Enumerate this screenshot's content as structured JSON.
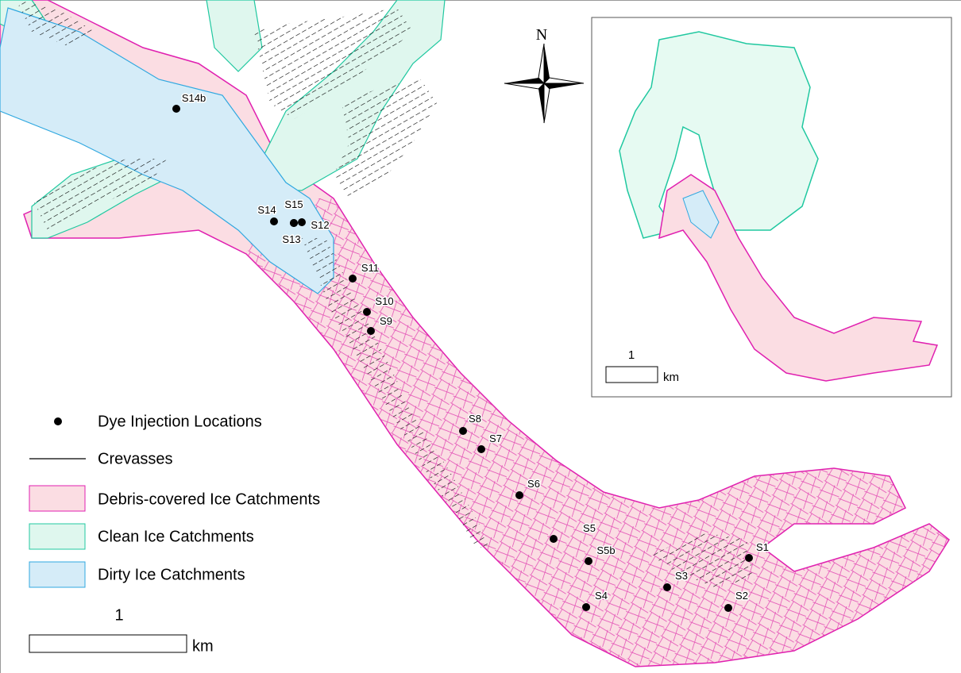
{
  "north_label": "N",
  "sites": [
    {
      "label": "S14b"
    },
    {
      "label": "S14"
    },
    {
      "label": "S15"
    },
    {
      "label": "S12"
    },
    {
      "label": "S13"
    },
    {
      "label": "S11"
    },
    {
      "label": "S10"
    },
    {
      "label": "S9"
    },
    {
      "label": "S8"
    },
    {
      "label": "S7"
    },
    {
      "label": "S6"
    },
    {
      "label": "S5"
    },
    {
      "label": "S5b"
    },
    {
      "label": "S4"
    },
    {
      "label": "S3"
    },
    {
      "label": "S2"
    },
    {
      "label": "S1"
    }
  ],
  "legend": [
    {
      "label": "Dye Injection Locations"
    },
    {
      "label": "Crevasses"
    },
    {
      "label": "Debris-covered Ice Catchments"
    },
    {
      "label": "Clean Ice Catchments"
    },
    {
      "label": "Dirty Ice Catchments"
    }
  ],
  "scale_bar": {
    "value": "1",
    "unit": "km"
  },
  "inset_scale_bar": {
    "value": "1",
    "unit": "km"
  }
}
